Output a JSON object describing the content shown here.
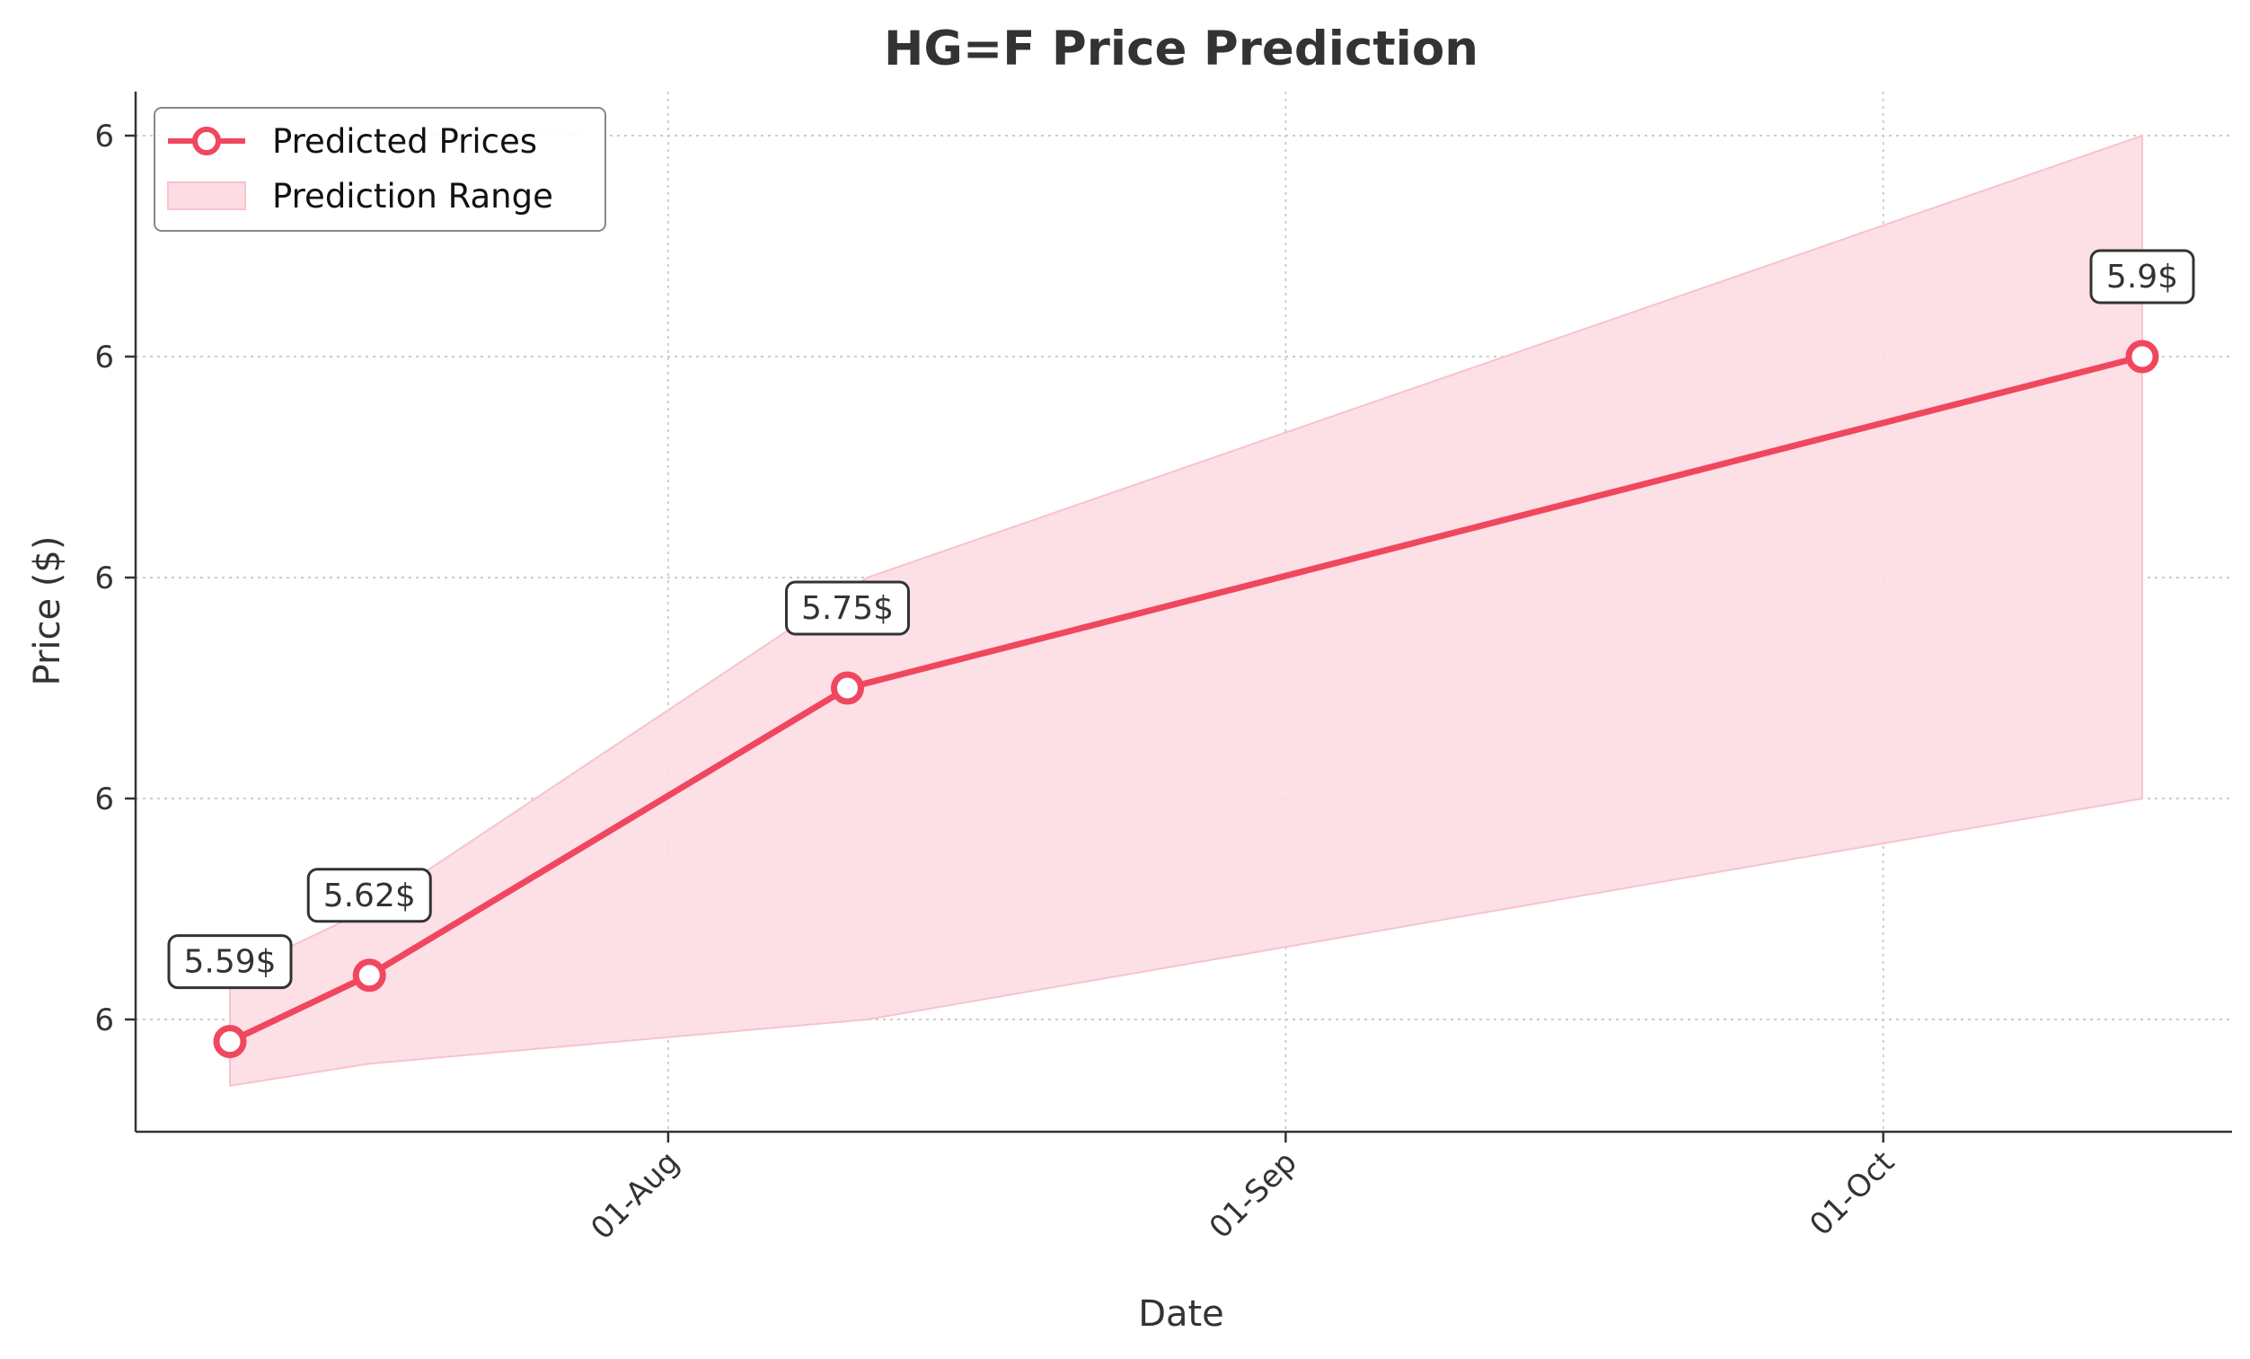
{
  "chart_data": {
    "type": "line",
    "title": "HG=F Price Prediction",
    "xlabel": "Date",
    "ylabel": "Price ($)",
    "x_tick_labels": [
      "01-Aug",
      "01-Sep",
      "01-Oct"
    ],
    "y_tick_labels": [
      "6",
      "6",
      "6",
      "6",
      "6"
    ],
    "ylim": [
      5.55,
      6.02
    ],
    "grid": true,
    "legend_position": "top-left",
    "colors": {
      "line": "#f0475f",
      "band": "#fddde3",
      "band_edge": "#f7c3cd"
    },
    "series": [
      {
        "name": "Predicted Prices",
        "dates": [
          "2025-07-10",
          "2025-07-17",
          "2025-08-10",
          "2025-10-14"
        ],
        "values": [
          5.59,
          5.62,
          5.75,
          5.9
        ]
      }
    ],
    "range": {
      "name": "Prediction Range",
      "dates": [
        "2025-07-10",
        "2025-07-17",
        "2025-08-11",
        "2025-10-14"
      ],
      "lower": [
        5.57,
        5.58,
        5.6,
        5.7
      ],
      "upper": [
        5.62,
        5.65,
        5.8,
        6.0
      ]
    },
    "data_labels": [
      "5.59$",
      "5.62$",
      "5.75$",
      "5.9$"
    ]
  }
}
